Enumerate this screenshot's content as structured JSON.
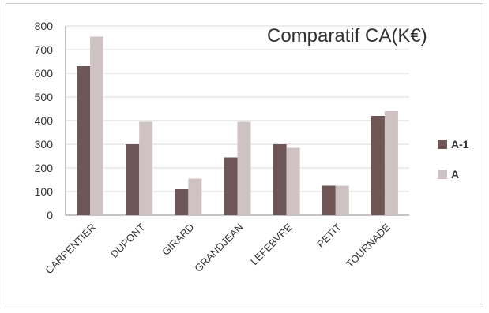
{
  "chart_data": {
    "type": "bar",
    "title": "Comparatif CA(K€)",
    "categories": [
      "CARPENTIER",
      "DUPONT",
      "GIRARD",
      "GRANDJEAN",
      "LEFEBVRE",
      "PETIT",
      "TOURNADE"
    ],
    "series": [
      {
        "name": "A-1",
        "values": [
          630,
          300,
          110,
          245,
          300,
          125,
          420
        ],
        "color": "#6e5656"
      },
      {
        "name": "A",
        "values": [
          755,
          395,
          155,
          395,
          285,
          125,
          440
        ],
        "color": "#cfc2c2"
      }
    ],
    "ylim": [
      0,
      800
    ],
    "yticks": [
      0,
      100,
      200,
      300,
      400,
      500,
      600,
      700,
      800
    ],
    "grid": true,
    "legend_position": "right"
  }
}
